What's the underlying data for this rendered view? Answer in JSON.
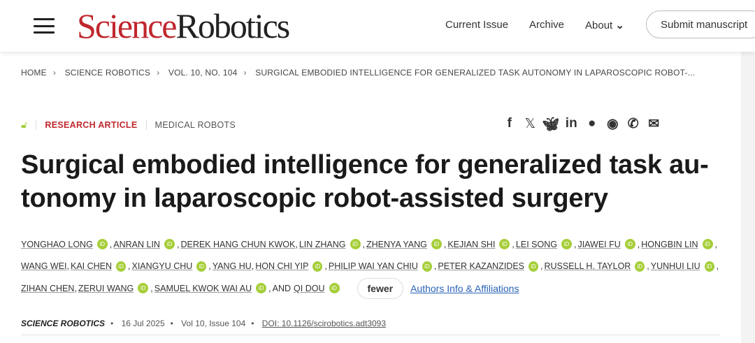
{
  "header": {
    "logo_part1": "Science",
    "logo_part2": "Robotics",
    "nav": [
      "Current Issue",
      "Archive",
      "About"
    ],
    "submit": "Submit manuscript"
  },
  "breadcrumb": [
    "HOME",
    "SCIENCE ROBOTICS",
    "VOL. 10, NO. 104",
    "SURGICAL EMBODIED INTELLIGENCE FOR GENERALIZED TASK AUTONOMY IN LAPAROSCOPIC ROBOT-..."
  ],
  "article": {
    "type": "RESEARCH ARTICLE",
    "category": "MEDICAL ROBOTS",
    "title": "Surgical embodied intelligence for generalized task au-tonomy in laparoscopic robot-assisted surgery",
    "share_icons": [
      "facebook-icon",
      "x-icon",
      "bluesky-icon",
      "linkedin-icon",
      "reddit-icon",
      "wechat-icon",
      "whatsapp-icon",
      "email-icon"
    ]
  },
  "authors": [
    [
      [
        "YONGHAO LONG",
        true
      ],
      [
        "ANRAN LIN",
        true
      ],
      [
        "DEREK HANG CHUN KWOK",
        false
      ],
      [
        "LIN ZHANG",
        true
      ],
      [
        "ZHENYA YANG",
        true
      ],
      [
        "KEJIAN SHI",
        true
      ],
      [
        "LEI SONG",
        true
      ],
      [
        "JIAWEI FU",
        true
      ],
      [
        "HONGBIN LIN",
        true
      ]
    ],
    [
      [
        "WANG WEI",
        false
      ],
      [
        "KAI CHEN",
        true
      ],
      [
        "XIANGYU CHU",
        true
      ],
      [
        "YANG HU",
        false
      ],
      [
        "HON CHI YIP",
        true
      ],
      [
        "PHILIP WAI YAN CHIU",
        true
      ],
      [
        "PETER KAZANZIDES",
        true
      ],
      [
        "RUSSELL H. TAYLOR",
        true
      ],
      [
        "YUNHUI LIU",
        true
      ]
    ],
    [
      [
        "ZIHAN CHEN",
        false
      ],
      [
        "ZERUI WANG",
        true
      ],
      [
        "SAMUEL KWOK WAI AU",
        true
      ],
      [
        "QI DOU",
        true
      ]
    ]
  ],
  "authors_and": "AND",
  "fewer": "fewer",
  "affiliations": "Authors Info & Affiliations",
  "pub": {
    "journal": "SCIENCE ROBOTICS",
    "date": "16 Jul 2025",
    "issue": "Vol 10, Issue 104",
    "doi": "DOI: 10.1126/scirobotics.adt3093"
  },
  "colors": {
    "brand": "#c0272d",
    "orcid": "#a6ce39",
    "link": "#2a64b6"
  }
}
